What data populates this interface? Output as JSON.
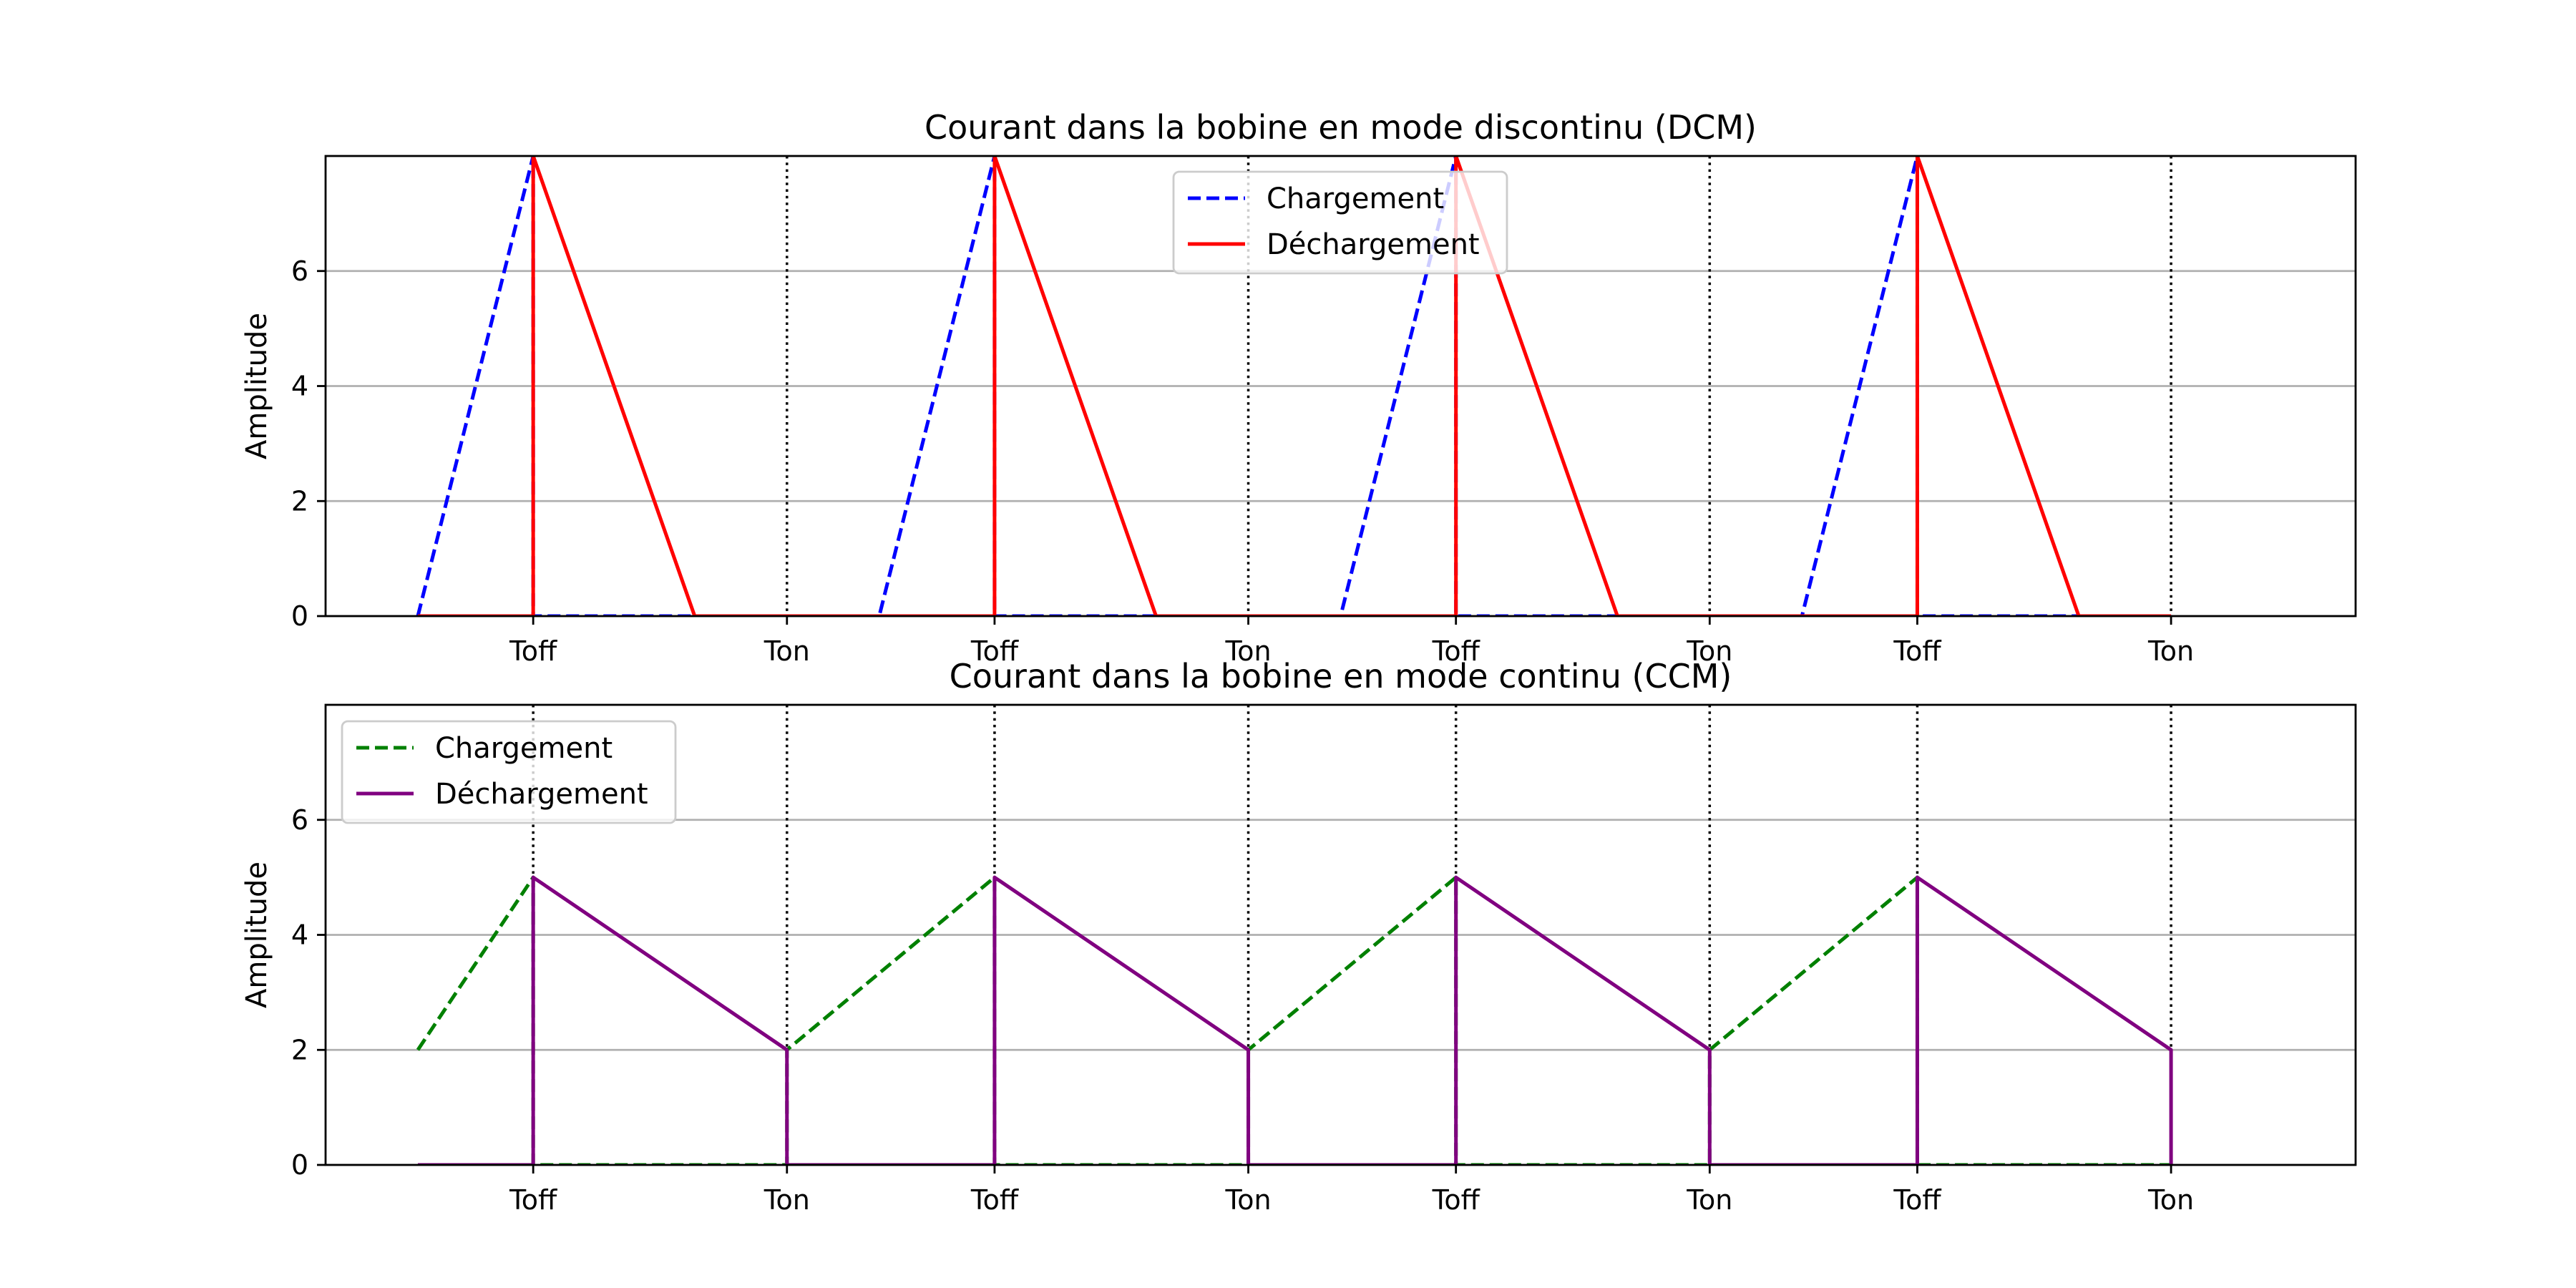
{
  "chart_data": [
    {
      "type": "line",
      "title": "Courant dans la bobine en mode discontinu (DCM)",
      "xlabel": "",
      "ylabel": "Amplitude",
      "xlim": [
        -0.5,
        10.5
      ],
      "ylim": [
        0,
        8
      ],
      "yticks": [
        0,
        2,
        4,
        6
      ],
      "grid": "y",
      "legend_position": "upper center",
      "xticks": [
        {
          "x": 0.625,
          "label": "Toff"
        },
        {
          "x": 2.0,
          "label": "Ton"
        },
        {
          "x": 3.125,
          "label": "Toff"
        },
        {
          "x": 4.5,
          "label": "Ton"
        },
        {
          "x": 5.625,
          "label": "Toff"
        },
        {
          "x": 7.0,
          "label": "Ton"
        },
        {
          "x": 8.125,
          "label": "Toff"
        },
        {
          "x": 9.5,
          "label": "Ton"
        }
      ],
      "vlines": [
        2.0,
        4.5,
        7.0,
        9.5
      ],
      "series": [
        {
          "name": "Chargement",
          "color": "#0000ff",
          "linestyle": "dashed",
          "x": [
            0,
            0.625,
            0.625,
            2.0,
            2.5,
            3.125,
            3.125,
            4.5,
            5.0,
            5.625,
            5.625,
            7.0,
            7.5,
            8.125,
            8.125,
            9.5
          ],
          "y": [
            0,
            8,
            0,
            0,
            0,
            8,
            0,
            0,
            0,
            8,
            0,
            0,
            0,
            8,
            0,
            0
          ]
        },
        {
          "name": "Déchargement",
          "color": "#ff0000",
          "linestyle": "solid",
          "x": [
            0,
            0.625,
            0.625,
            1.5,
            2.0,
            3.125,
            3.125,
            4.0,
            4.5,
            5.625,
            5.625,
            6.5,
            7.0,
            8.125,
            8.125,
            9.0,
            9.5
          ],
          "y": [
            0,
            0,
            8,
            0,
            0,
            0,
            8,
            0,
            0,
            0,
            8,
            0,
            0,
            0,
            8,
            0,
            0
          ]
        }
      ]
    },
    {
      "type": "line",
      "title": "Courant dans la bobine en mode continu (CCM)",
      "xlabel": "",
      "ylabel": "Amplitude",
      "xlim": [
        -0.5,
        10.5
      ],
      "ylim": [
        0,
        8
      ],
      "yticks": [
        0,
        2,
        4,
        6
      ],
      "grid": "y",
      "legend_position": "upper left",
      "xticks": [
        {
          "x": 0.625,
          "label": "Toff"
        },
        {
          "x": 2.0,
          "label": "Ton"
        },
        {
          "x": 3.125,
          "label": "Toff"
        },
        {
          "x": 4.5,
          "label": "Ton"
        },
        {
          "x": 5.625,
          "label": "Toff"
        },
        {
          "x": 7.0,
          "label": "Ton"
        },
        {
          "x": 8.125,
          "label": "Toff"
        },
        {
          "x": 9.5,
          "label": "Ton"
        }
      ],
      "vlines": [
        0.625,
        2.0,
        3.125,
        4.5,
        5.625,
        7.0,
        8.125,
        9.5
      ],
      "series": [
        {
          "name": "Chargement",
          "color": "#008000",
          "linestyle": "dashed",
          "x": [
            0,
            0.625,
            0.625,
            2.0,
            2.0,
            3.125,
            3.125,
            4.5,
            4.5,
            5.625,
            5.625,
            7.0,
            7.0,
            8.125,
            8.125,
            9.5
          ],
          "y": [
            2,
            5,
            0,
            0,
            2,
            5,
            0,
            0,
            2,
            5,
            0,
            0,
            2,
            5,
            0,
            0
          ]
        },
        {
          "name": "Déchargement",
          "color": "#800080",
          "linestyle": "solid",
          "x": [
            0,
            0.625,
            0.625,
            2.0,
            2.0,
            3.125,
            3.125,
            4.5,
            4.5,
            5.625,
            5.625,
            7.0,
            7.0,
            8.125,
            8.125,
            9.5,
            9.5
          ],
          "y": [
            0,
            0,
            5,
            2,
            0,
            0,
            5,
            2,
            0,
            0,
            5,
            2,
            0,
            0,
            5,
            2,
            0
          ]
        }
      ]
    }
  ]
}
